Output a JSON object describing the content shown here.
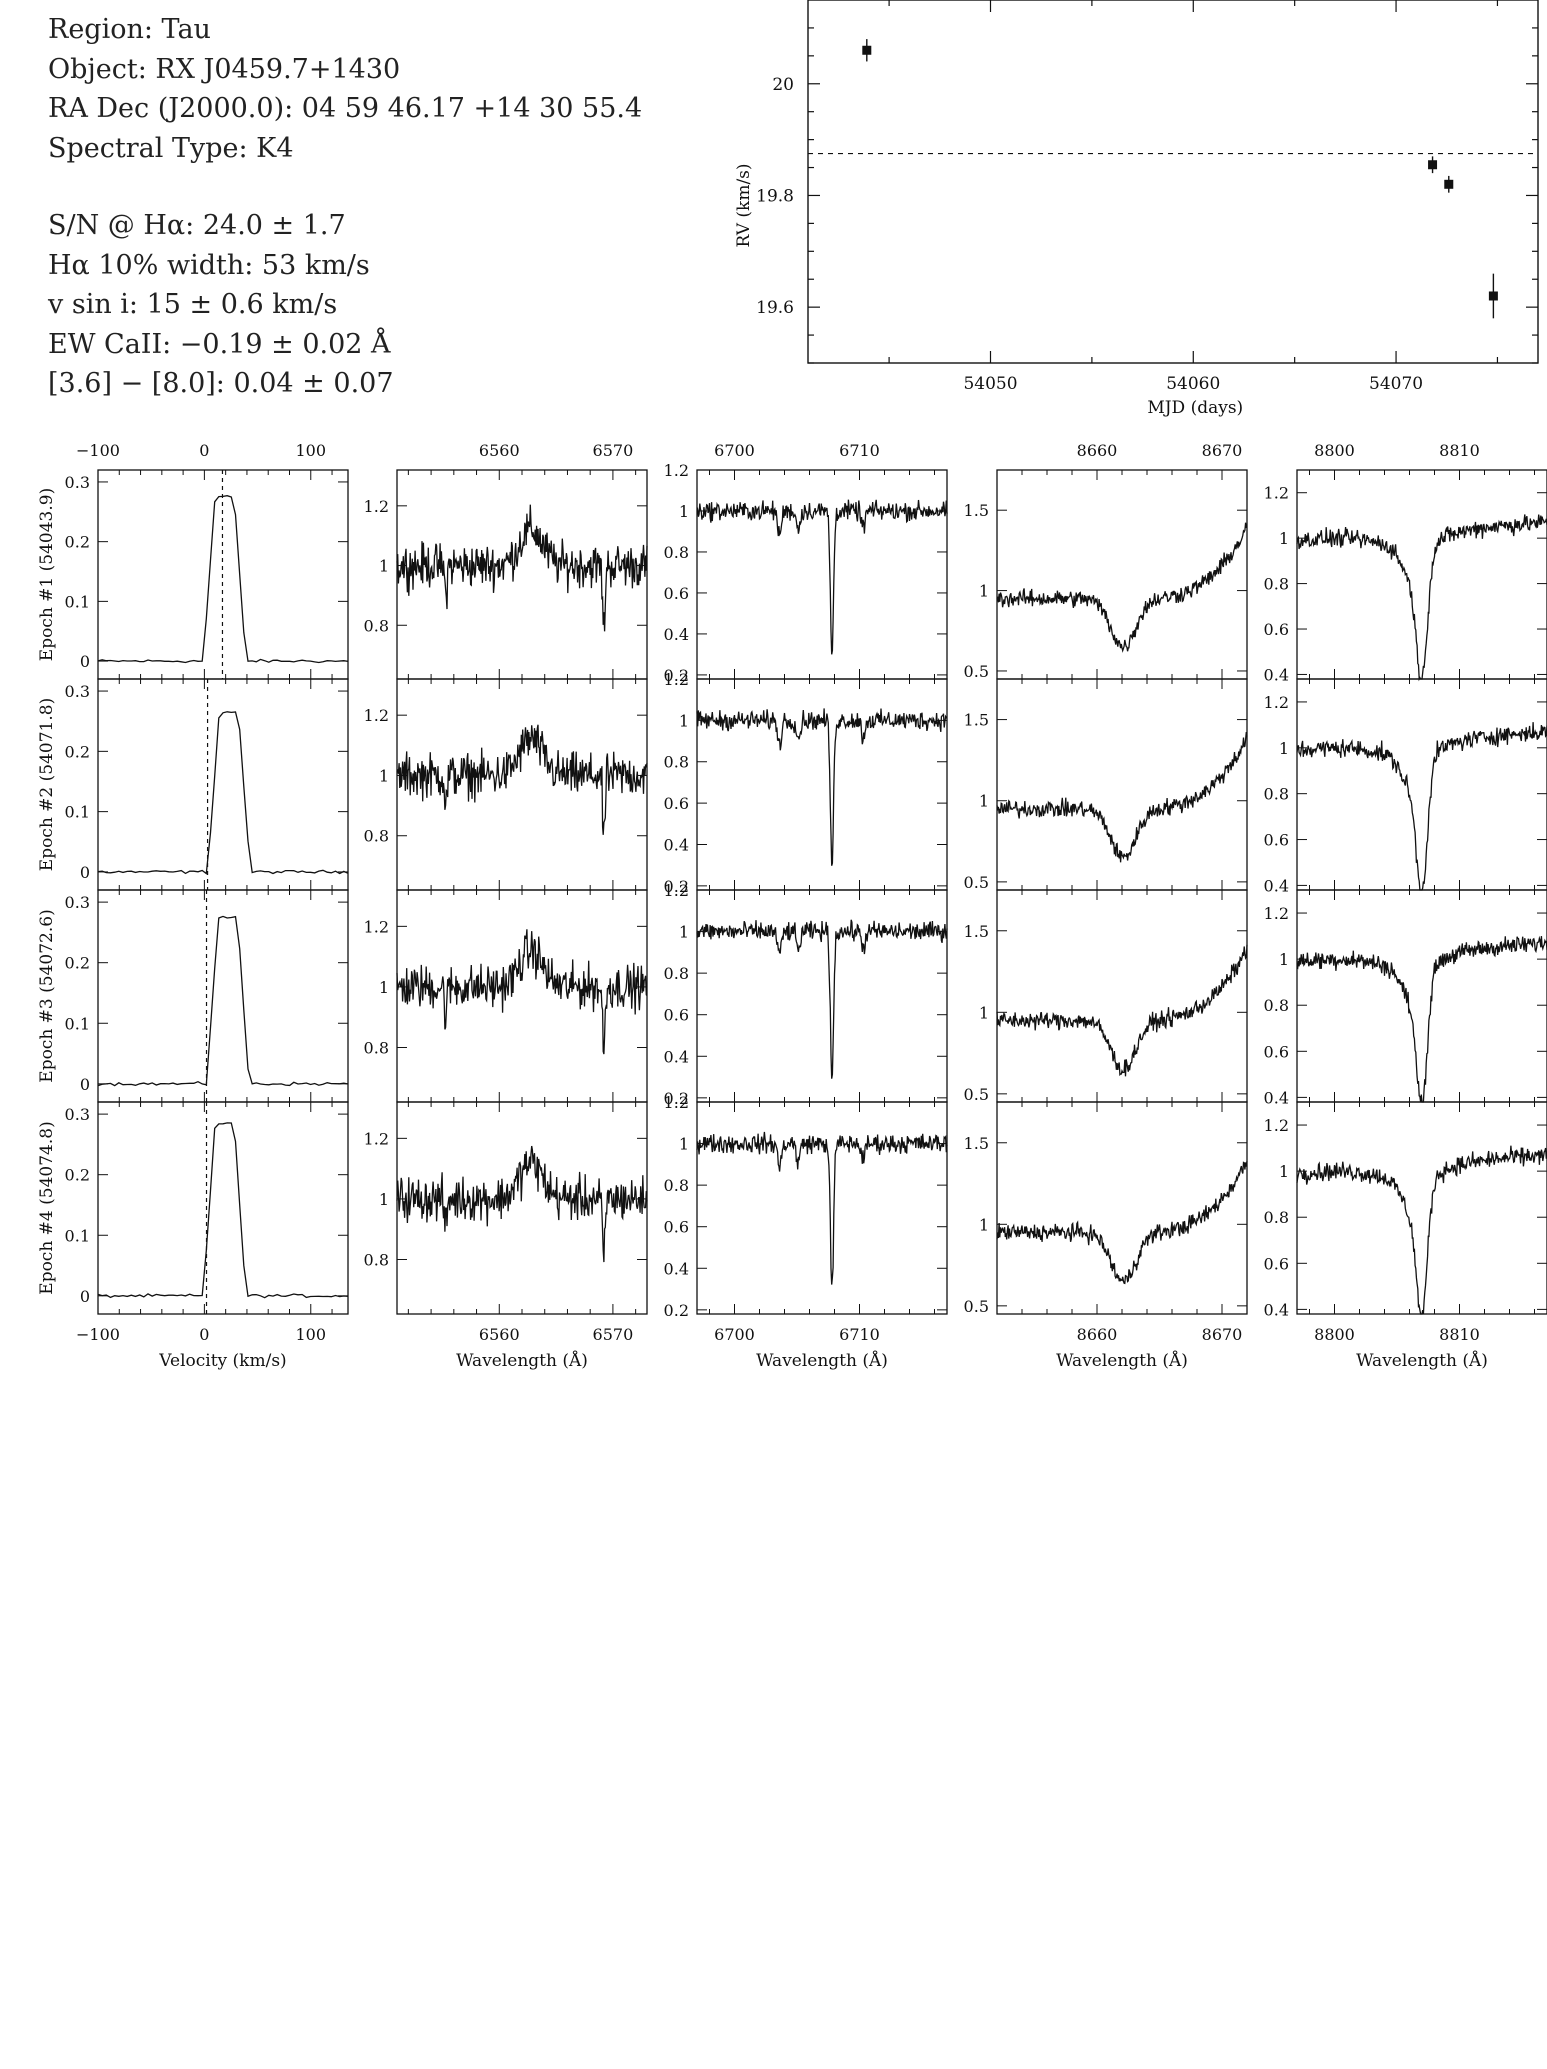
{
  "header": {
    "region": "Region: Tau",
    "object": "Object: RX J0459.7+1430",
    "radec": "RA Dec (J2000.0): 04 59 46.17 +14 30 55.4",
    "sptype": "Spectral Type: K4",
    "sn": "S/N @ Hα: 24.0 ± 1.7",
    "ha_width": "Hα 10% width: 53 km/s",
    "vsini": "v sin i: 15 ± 0.6 km/s",
    "ew_caii": "EW CaII: −0.19 ± 0.02 Å",
    "irac": "[3.6] − [8.0]: 0.04 ± 0.07"
  },
  "chart_data": [
    {
      "type": "scatter",
      "title": "",
      "xlabel": "MJD (days)",
      "ylabel": "RV (km/s)",
      "xlim": [
        54041,
        54077
      ],
      "ylim": [
        19.5,
        20.15
      ],
      "xticks": [
        54050,
        54060,
        54070
      ],
      "yticks": [
        19.6,
        19.8,
        20
      ],
      "ytick_labels": [
        "19.6",
        "19.8",
        "20"
      ],
      "points": [
        {
          "x": 54043.9,
          "y": 20.06,
          "err": 0.02
        },
        {
          "x": 54071.8,
          "y": 19.855,
          "err": 0.015
        },
        {
          "x": 54072.6,
          "y": 19.82,
          "err": 0.015
        },
        {
          "x": 54074.8,
          "y": 19.62,
          "err": 0.04
        }
      ],
      "mean_rv": 19.875
    },
    {
      "type": "line",
      "panel_grid": "4 epochs x 5 columns",
      "epoch_labels": [
        "Epoch #1 (54043.9)",
        "Epoch #2 (54071.8)",
        "Epoch #3 (54072.6)",
        "Epoch #4 (54074.8)"
      ],
      "columns": [
        {
          "xlabel": "Velocity (km/s)",
          "xlim": [
            -100,
            135
          ],
          "ylim": [
            -0.03,
            0.32
          ],
          "xticks": [
            -100,
            0,
            100
          ],
          "xtick_labels": [
            "−100",
            "0",
            "100"
          ],
          "yticks": [
            0,
            0.1,
            0.2,
            0.3
          ],
          "ytick_labels": [
            "0",
            "0.1",
            "0.2",
            "0.3"
          ],
          "kind": "ccf",
          "peak_velocity": [
            19,
            23,
            22,
            19
          ],
          "peak_height": [
            0.275,
            0.265,
            0.275,
            0.285
          ],
          "dashed_line_velocity": [
            17,
            3,
            2,
            2
          ]
        },
        {
          "xlabel": "Wavelength (Å)",
          "xlim": [
            6551,
            6573
          ],
          "ylim": [
            0.62,
            1.32
          ],
          "xticks": [
            6560,
            6570
          ],
          "xtick_labels": [
            "6560",
            "6570"
          ],
          "yticks": [
            0.8,
            1,
            1.2
          ],
          "ytick_labels": [
            "0.8",
            "1",
            "1.2"
          ],
          "kind": "halpha",
          "features": [
            {
              "center": 6562.8,
              "depth": -0.12,
              "width": 1.4
            },
            {
              "center": 6569.2,
              "depth": 0.22,
              "width": 0.15
            },
            {
              "center": 6555.3,
              "depth": 0.1,
              "width": 0.15
            }
          ]
        },
        {
          "xlabel": "Wavelength (Å)",
          "xlim": [
            6697,
            6717
          ],
          "ylim": [
            0.18,
            1.2
          ],
          "xticks": [
            6700,
            6710
          ],
          "xtick_labels": [
            "6700",
            "6710"
          ],
          "yticks": [
            0.2,
            0.4,
            0.6,
            0.8,
            1,
            1.2
          ],
          "ytick_labels": [
            "0.2",
            "0.4",
            "0.6",
            "0.8",
            "1",
            "1.2"
          ],
          "kind": "lithium",
          "features": [
            {
              "center": 6707.8,
              "depth": 0.7,
              "width": 0.18
            },
            {
              "center": 6703.6,
              "depth": 0.12,
              "width": 0.2
            },
            {
              "center": 6705.1,
              "depth": 0.09,
              "width": 0.2
            },
            {
              "center": 6710.3,
              "depth": 0.08,
              "width": 0.2
            }
          ]
        },
        {
          "xlabel": "Wavelength (Å)",
          "xlim": [
            8652,
            8672
          ],
          "ylim": [
            0.45,
            1.75
          ],
          "xticks": [
            8660,
            8670
          ],
          "xtick_labels": [
            "8660",
            "8670"
          ],
          "yticks": [
            0.5,
            1,
            1.5
          ],
          "ytick_labels": [
            "0.5",
            "1",
            "1.5"
          ],
          "kind": "caii",
          "features": [
            {
              "center": 8662.1,
              "depth": 0.3,
              "width": 1.4
            }
          ]
        },
        {
          "xlabel": "Wavelength (Å)",
          "xlim": [
            8797,
            8817
          ],
          "ylim": [
            0.38,
            1.3
          ],
          "xticks": [
            8800,
            8810
          ],
          "xtick_labels": [
            "8800",
            "8810"
          ],
          "yticks": [
            0.4,
            0.6,
            0.8,
            1,
            1.2
          ],
          "ytick_labels": [
            "0.4",
            "0.6",
            "0.8",
            "1",
            "1.2"
          ],
          "kind": "mg",
          "features": [
            {
              "center": 8807.0,
              "depth": 0.5,
              "width": 0.6
            },
            {
              "center": 8806.3,
              "depth": 0.15,
              "width": 1.2
            }
          ]
        }
      ]
    }
  ]
}
